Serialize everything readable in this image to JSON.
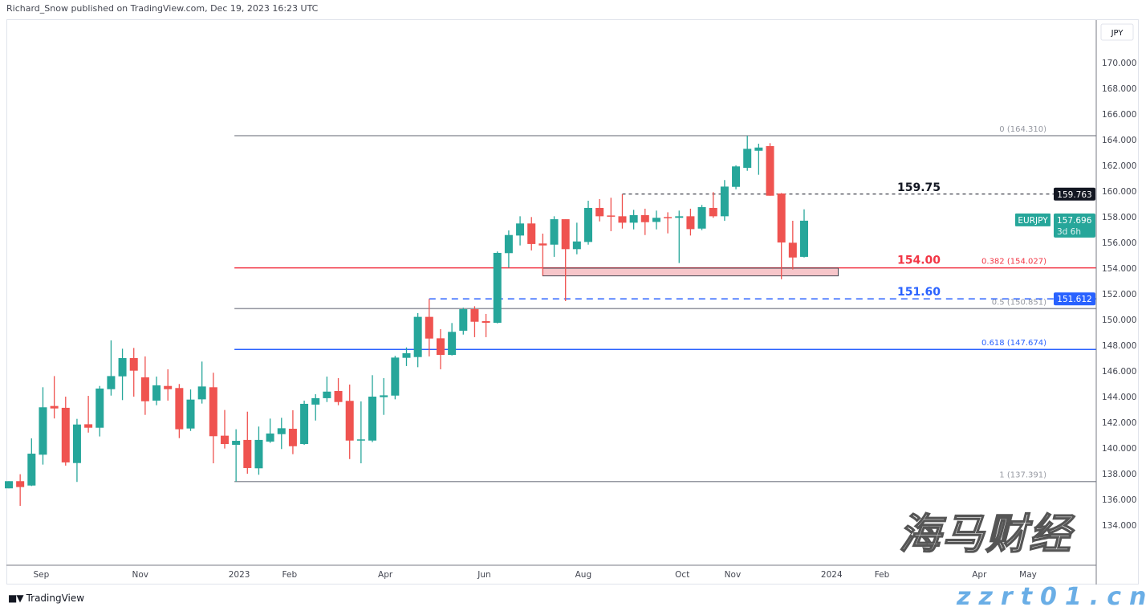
{
  "header": {
    "published": "Richard_Snow published on TradingView.com, Dec 19, 2023 16:23 UTC"
  },
  "footer": {
    "brand": "TradingView",
    "logo": "TV"
  },
  "watermark": {
    "text": "海马财经",
    "url": "zzrt01.cn"
  },
  "chart_data": {
    "type": "candlestick",
    "symbol": "EURJPY",
    "currency": "JPY",
    "interval": "1W",
    "colors": {
      "up": "#26a69a",
      "down": "#ef5350"
    },
    "ylim": [
      131,
      172
    ],
    "y_ticks": [
      134,
      136,
      138,
      140,
      142,
      144,
      146,
      148,
      150,
      152,
      154,
      156,
      158,
      160,
      162,
      164,
      166,
      168,
      170
    ],
    "x_ticks": [
      {
        "label": "Sep",
        "date": "2022-09-01"
      },
      {
        "label": "Nov",
        "date": "2022-11-01"
      },
      {
        "label": "2023",
        "date": "2023-01-01"
      },
      {
        "label": "Feb",
        "date": "2023-02-01"
      },
      {
        "label": "Apr",
        "date": "2023-04-01"
      },
      {
        "label": "Jun",
        "date": "2023-06-01"
      },
      {
        "label": "Aug",
        "date": "2023-08-01"
      },
      {
        "label": "Oct",
        "date": "2023-10-01"
      },
      {
        "label": "Nov",
        "date": "2023-11-01"
      },
      {
        "label": "2024",
        "date": "2024-01-01"
      },
      {
        "label": "Feb",
        "date": "2024-02-01"
      },
      {
        "label": "Apr",
        "date": "2024-04-01"
      },
      {
        "label": "May",
        "date": "2024-05-01"
      }
    ],
    "candles_fields": [
      "date",
      "open",
      "high",
      "low",
      "close"
    ],
    "candles": [
      [
        "2022-08-15",
        136.86,
        137.42,
        136.86,
        137.42
      ],
      [
        "2022-08-22",
        137.42,
        137.96,
        135.5,
        136.96
      ],
      [
        "2022-08-29",
        137.08,
        140.75,
        137.04,
        139.56
      ],
      [
        "2022-09-05",
        139.48,
        144.73,
        138.71,
        143.17
      ],
      [
        "2022-09-12",
        143.27,
        145.6,
        142.3,
        143.08
      ],
      [
        "2022-09-19",
        143.13,
        144.0,
        138.63,
        138.88
      ],
      [
        "2022-09-26",
        138.83,
        142.27,
        137.36,
        141.83
      ],
      [
        "2022-10-03",
        141.85,
        144.06,
        141.2,
        141.58
      ],
      [
        "2022-10-10",
        141.58,
        144.83,
        140.9,
        144.63
      ],
      [
        "2022-10-17",
        144.58,
        148.38,
        144.08,
        145.6
      ],
      [
        "2022-10-24",
        145.58,
        147.73,
        143.73,
        147.0
      ],
      [
        "2022-10-31",
        147.0,
        147.79,
        144.0,
        146.02
      ],
      [
        "2022-11-07",
        145.5,
        147.13,
        142.58,
        143.64
      ],
      [
        "2022-11-14",
        143.69,
        145.56,
        143.33,
        144.88
      ],
      [
        "2022-11-21",
        144.83,
        146.13,
        143.69,
        144.58
      ],
      [
        "2022-11-28",
        144.67,
        144.98,
        140.77,
        141.46
      ],
      [
        "2022-12-05",
        141.52,
        144.56,
        141.33,
        143.77
      ],
      [
        "2022-12-12",
        143.79,
        146.73,
        143.46,
        144.79
      ],
      [
        "2022-12-19",
        144.73,
        145.86,
        138.81,
        140.92
      ],
      [
        "2022-12-26",
        140.96,
        142.96,
        139.96,
        140.31
      ],
      [
        "2023-01-02",
        140.25,
        141.46,
        137.39,
        140.56
      ],
      [
        "2023-01-09",
        140.63,
        142.83,
        138.0,
        138.44
      ],
      [
        "2023-01-16",
        138.42,
        141.67,
        137.92,
        140.63
      ],
      [
        "2023-01-23",
        140.5,
        142.29,
        140.4,
        141.13
      ],
      [
        "2023-01-30",
        141.08,
        142.35,
        139.92,
        141.54
      ],
      [
        "2023-02-06",
        141.5,
        142.94,
        139.52,
        140.14
      ],
      [
        "2023-02-13",
        140.31,
        143.69,
        140.25,
        143.44
      ],
      [
        "2023-02-20",
        143.38,
        144.19,
        142.14,
        143.88
      ],
      [
        "2023-02-27",
        143.88,
        145.56,
        143.58,
        144.39
      ],
      [
        "2023-03-06",
        144.44,
        145.44,
        143.33,
        143.58
      ],
      [
        "2023-03-13",
        143.67,
        144.94,
        139.14,
        140.58
      ],
      [
        "2023-03-20",
        140.58,
        143.63,
        138.81,
        140.67
      ],
      [
        "2023-03-27",
        140.58,
        145.67,
        140.46,
        144.0
      ],
      [
        "2023-04-03",
        143.96,
        145.44,
        142.58,
        144.1
      ],
      [
        "2023-04-10",
        144.08,
        147.17,
        143.79,
        147.04
      ],
      [
        "2023-04-17",
        147.02,
        147.83,
        146.38,
        147.38
      ],
      [
        "2023-04-24",
        147.08,
        150.5,
        146.29,
        150.21
      ],
      [
        "2023-05-01",
        150.21,
        151.61,
        147.13,
        148.52
      ],
      [
        "2023-05-08",
        148.54,
        149.25,
        146.13,
        147.25
      ],
      [
        "2023-05-15",
        147.25,
        149.73,
        147.2,
        149.04
      ],
      [
        "2023-05-22",
        149.13,
        150.92,
        148.83,
        150.81
      ],
      [
        "2023-05-29",
        150.81,
        151.04,
        148.63,
        149.83
      ],
      [
        "2023-06-05",
        149.88,
        150.44,
        148.63,
        149.75
      ],
      [
        "2023-06-12",
        149.75,
        155.3,
        149.7,
        155.19
      ],
      [
        "2023-06-19",
        155.17,
        156.94,
        154.04,
        156.58
      ],
      [
        "2023-06-26",
        156.54,
        158.04,
        155.77,
        157.48
      ],
      [
        "2023-07-03",
        157.48,
        157.98,
        155.38,
        155.88
      ],
      [
        "2023-07-10",
        155.92,
        156.69,
        153.42,
        155.77
      ],
      [
        "2023-07-17",
        155.83,
        158.04,
        154.88,
        157.81
      ],
      [
        "2023-07-24",
        157.81,
        157.81,
        151.44,
        155.48
      ],
      [
        "2023-07-31",
        155.48,
        157.54,
        155.08,
        156.08
      ],
      [
        "2023-08-07",
        156.04,
        159.25,
        155.83,
        158.69
      ],
      [
        "2023-08-14",
        158.69,
        159.38,
        157.64,
        158.04
      ],
      [
        "2023-08-21",
        158.1,
        159.48,
        156.88,
        158.04
      ],
      [
        "2023-08-28",
        158.04,
        159.76,
        157.08,
        157.54
      ],
      [
        "2023-09-04",
        157.54,
        158.54,
        157.02,
        158.13
      ],
      [
        "2023-09-11",
        158.13,
        158.63,
        156.58,
        157.58
      ],
      [
        "2023-09-18",
        157.6,
        158.48,
        157.02,
        157.92
      ],
      [
        "2023-09-25",
        157.98,
        158.35,
        156.71,
        157.94
      ],
      [
        "2023-10-02",
        157.92,
        158.48,
        154.4,
        158.04
      ],
      [
        "2023-10-09",
        158.04,
        158.63,
        156.54,
        157.04
      ],
      [
        "2023-10-16",
        157.08,
        158.92,
        156.96,
        158.75
      ],
      [
        "2023-10-23",
        158.69,
        159.92,
        157.92,
        158.04
      ],
      [
        "2023-10-30",
        158.04,
        160.86,
        157.69,
        160.35
      ],
      [
        "2023-11-06",
        160.33,
        162.0,
        160.14,
        161.92
      ],
      [
        "2023-11-13",
        161.81,
        164.31,
        161.58,
        163.29
      ],
      [
        "2023-11-20",
        163.14,
        163.69,
        161.27,
        163.39
      ],
      [
        "2023-11-27",
        163.5,
        163.73,
        159.64,
        159.64
      ],
      [
        "2023-12-04",
        159.81,
        159.85,
        153.14,
        156.0
      ],
      [
        "2023-12-11",
        155.98,
        157.69,
        153.9,
        154.83
      ],
      [
        "2023-12-18",
        154.88,
        158.58,
        154.83,
        157.696
      ]
    ],
    "fibonacci": {
      "start_date": "2023-01-02",
      "color": "#9598a1",
      "levels": [
        {
          "ratio": "0",
          "price": 164.31,
          "label": "0 (164.310)",
          "color": "#9598a1"
        },
        {
          "ratio": "0.382",
          "price": 154.027,
          "label": "0.382 (154.027)",
          "color": "#f23645"
        },
        {
          "ratio": "0.5",
          "price": 150.851,
          "label": "0.5 (150.851)",
          "color": "#9598a1"
        },
        {
          "ratio": "0.618",
          "price": 147.674,
          "label": "0.618 (147.674)",
          "color": "#2962ff"
        },
        {
          "ratio": "1",
          "price": 137.391,
          "label": "1 (137.391)",
          "color": "#9598a1"
        }
      ]
    },
    "horizontal_lines": [
      {
        "price": 159.763,
        "start_date": "2023-08-28",
        "style": "dashed",
        "color": "#131722",
        "text": "159.75",
        "axis_label": "159.763"
      },
      {
        "price": 151.612,
        "start_date": "2023-05-01",
        "style": "dashed",
        "color": "#2962ff",
        "text": "151.60",
        "axis_label": "151.612"
      }
    ],
    "annotations": [
      {
        "text": "154.00",
        "price": 154.027,
        "color": "#f23645"
      }
    ],
    "zone": {
      "start_date": "2023-07-10",
      "end_date": "2024-01-08",
      "top": 154.0,
      "bottom": 153.4,
      "color": "#f7c6ca"
    },
    "last_price": {
      "symbol": "EURJPY",
      "value": "157.696",
      "countdown": "3d 6h",
      "color": "#26a69a"
    }
  }
}
